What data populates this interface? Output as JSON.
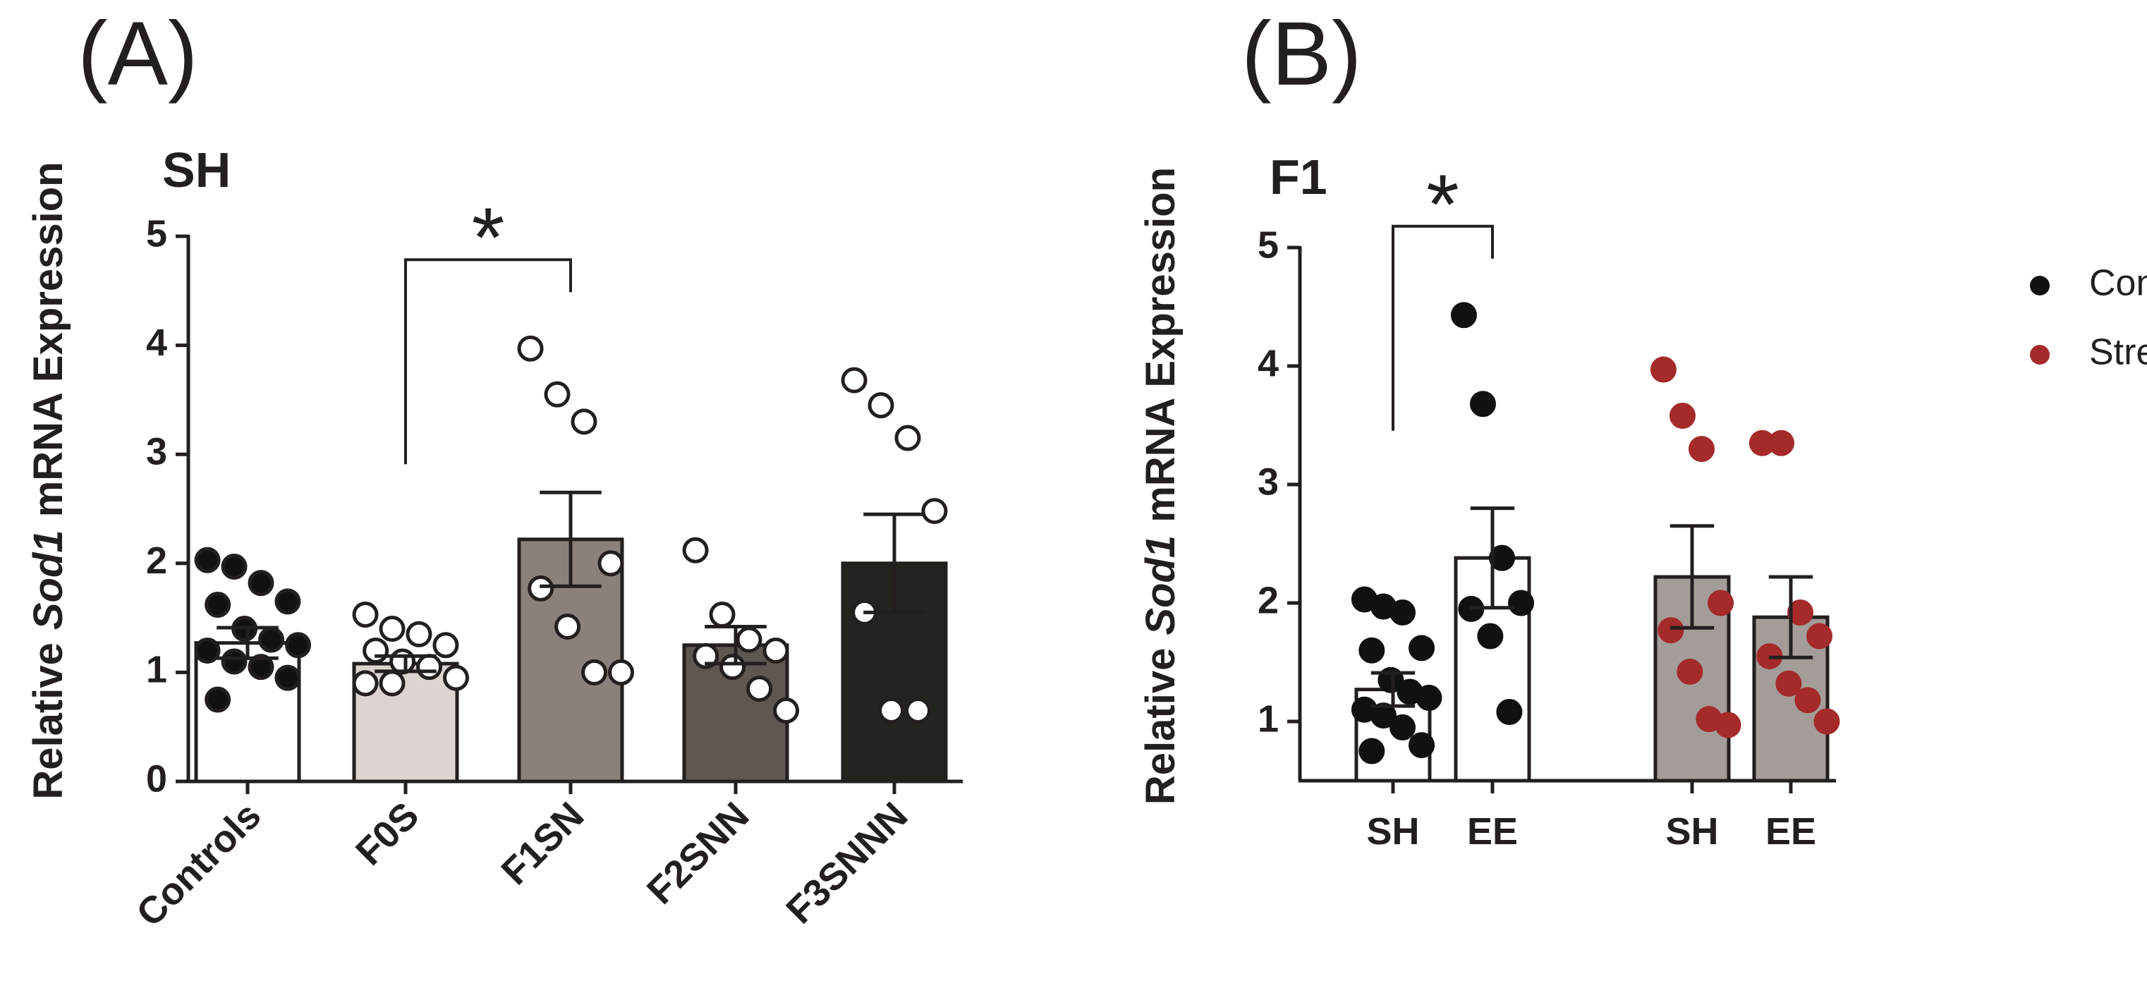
{
  "chart_data": [
    {
      "type": "bar",
      "panel": "(A)",
      "title": "SH",
      "ylabel_parts": [
        "Relative",
        "Sod1",
        "mRNA Expression"
      ],
      "categories": [
        "Controls",
        "F0S",
        "F1SN",
        "F2SNN",
        "F3SNNN"
      ],
      "values": [
        1.27,
        1.08,
        2.22,
        1.25,
        2.0
      ],
      "errors": [
        0.14,
        0.07,
        0.43,
        0.17,
        0.45
      ],
      "colors": [
        "#ffffff",
        "#dcd4d0",
        "#8a817c",
        "#5e5752",
        "#23231f"
      ],
      "point_fill": [
        "#111111",
        "#ffffff",
        "#ffffff",
        "#ffffff",
        "#ffffff"
      ],
      "points": [
        [
          2.03,
          1.97,
          1.82,
          1.65,
          1.62,
          1.4,
          1.3,
          1.25,
          1.2,
          1.1,
          1.05,
          0.95,
          0.75
        ],
        [
          1.53,
          1.4,
          1.35,
          1.25,
          1.2,
          1.1,
          1.05,
          0.95,
          0.9,
          0.9
        ],
        [
          3.97,
          3.55,
          3.3,
          2.0,
          1.77,
          1.42,
          1.0,
          1.0
        ],
        [
          2.12,
          1.53,
          1.3,
          1.2,
          1.15,
          1.05,
          0.85,
          0.65
        ],
        [
          3.68,
          3.45,
          3.15,
          2.48,
          1.55,
          0.65,
          0.65
        ]
      ],
      "ylim": [
        0,
        5
      ],
      "yticks": [
        0,
        1,
        2,
        3,
        4,
        5
      ],
      "annotations": [
        {
          "label": "*",
          "from": 1,
          "to": 2
        }
      ]
    },
    {
      "type": "grouped_bar",
      "panel": "(B)",
      "title": "F1",
      "ylabel_parts": [
        "Relative",
        "Sod1",
        "mRNA Expression"
      ],
      "categories": [
        "SH",
        "EE",
        "SH",
        "EE"
      ],
      "series": [
        {
          "name": "Control",
          "color": "#111111",
          "bar_color": "#ffffff",
          "values": [
            1.27,
            2.38,
            null,
            null
          ],
          "errors": [
            0.14,
            0.42,
            null,
            null
          ],
          "points": [
            [
              2.03,
              1.97,
              1.92,
              1.62,
              1.6,
              1.35,
              1.25,
              1.2,
              1.1,
              1.05,
              0.95,
              0.8,
              0.75
            ],
            [
              4.43,
              3.68,
              2.38,
              2.0,
              1.95,
              1.72,
              1.08
            ],
            null,
            null
          ]
        },
        {
          "name": "Stress",
          "color": "#a52a2a",
          "bar_color": "#a39c98",
          "values": [
            null,
            null,
            2.22,
            1.88
          ],
          "errors": [
            null,
            null,
            0.43,
            0.34
          ],
          "points": [
            null,
            null,
            [
              3.97,
              3.58,
              3.3,
              2.0,
              1.77,
              1.42,
              1.02,
              0.97
            ],
            [
              3.35,
              3.35,
              1.92,
              1.72,
              1.55,
              1.32,
              1.18,
              1.0
            ]
          ]
        }
      ],
      "ylim": [
        0.5,
        5
      ],
      "yticks": [
        1,
        2,
        3,
        4,
        5
      ],
      "annotations": [
        {
          "label": "*",
          "from": 0,
          "to": 1
        }
      ]
    }
  ]
}
